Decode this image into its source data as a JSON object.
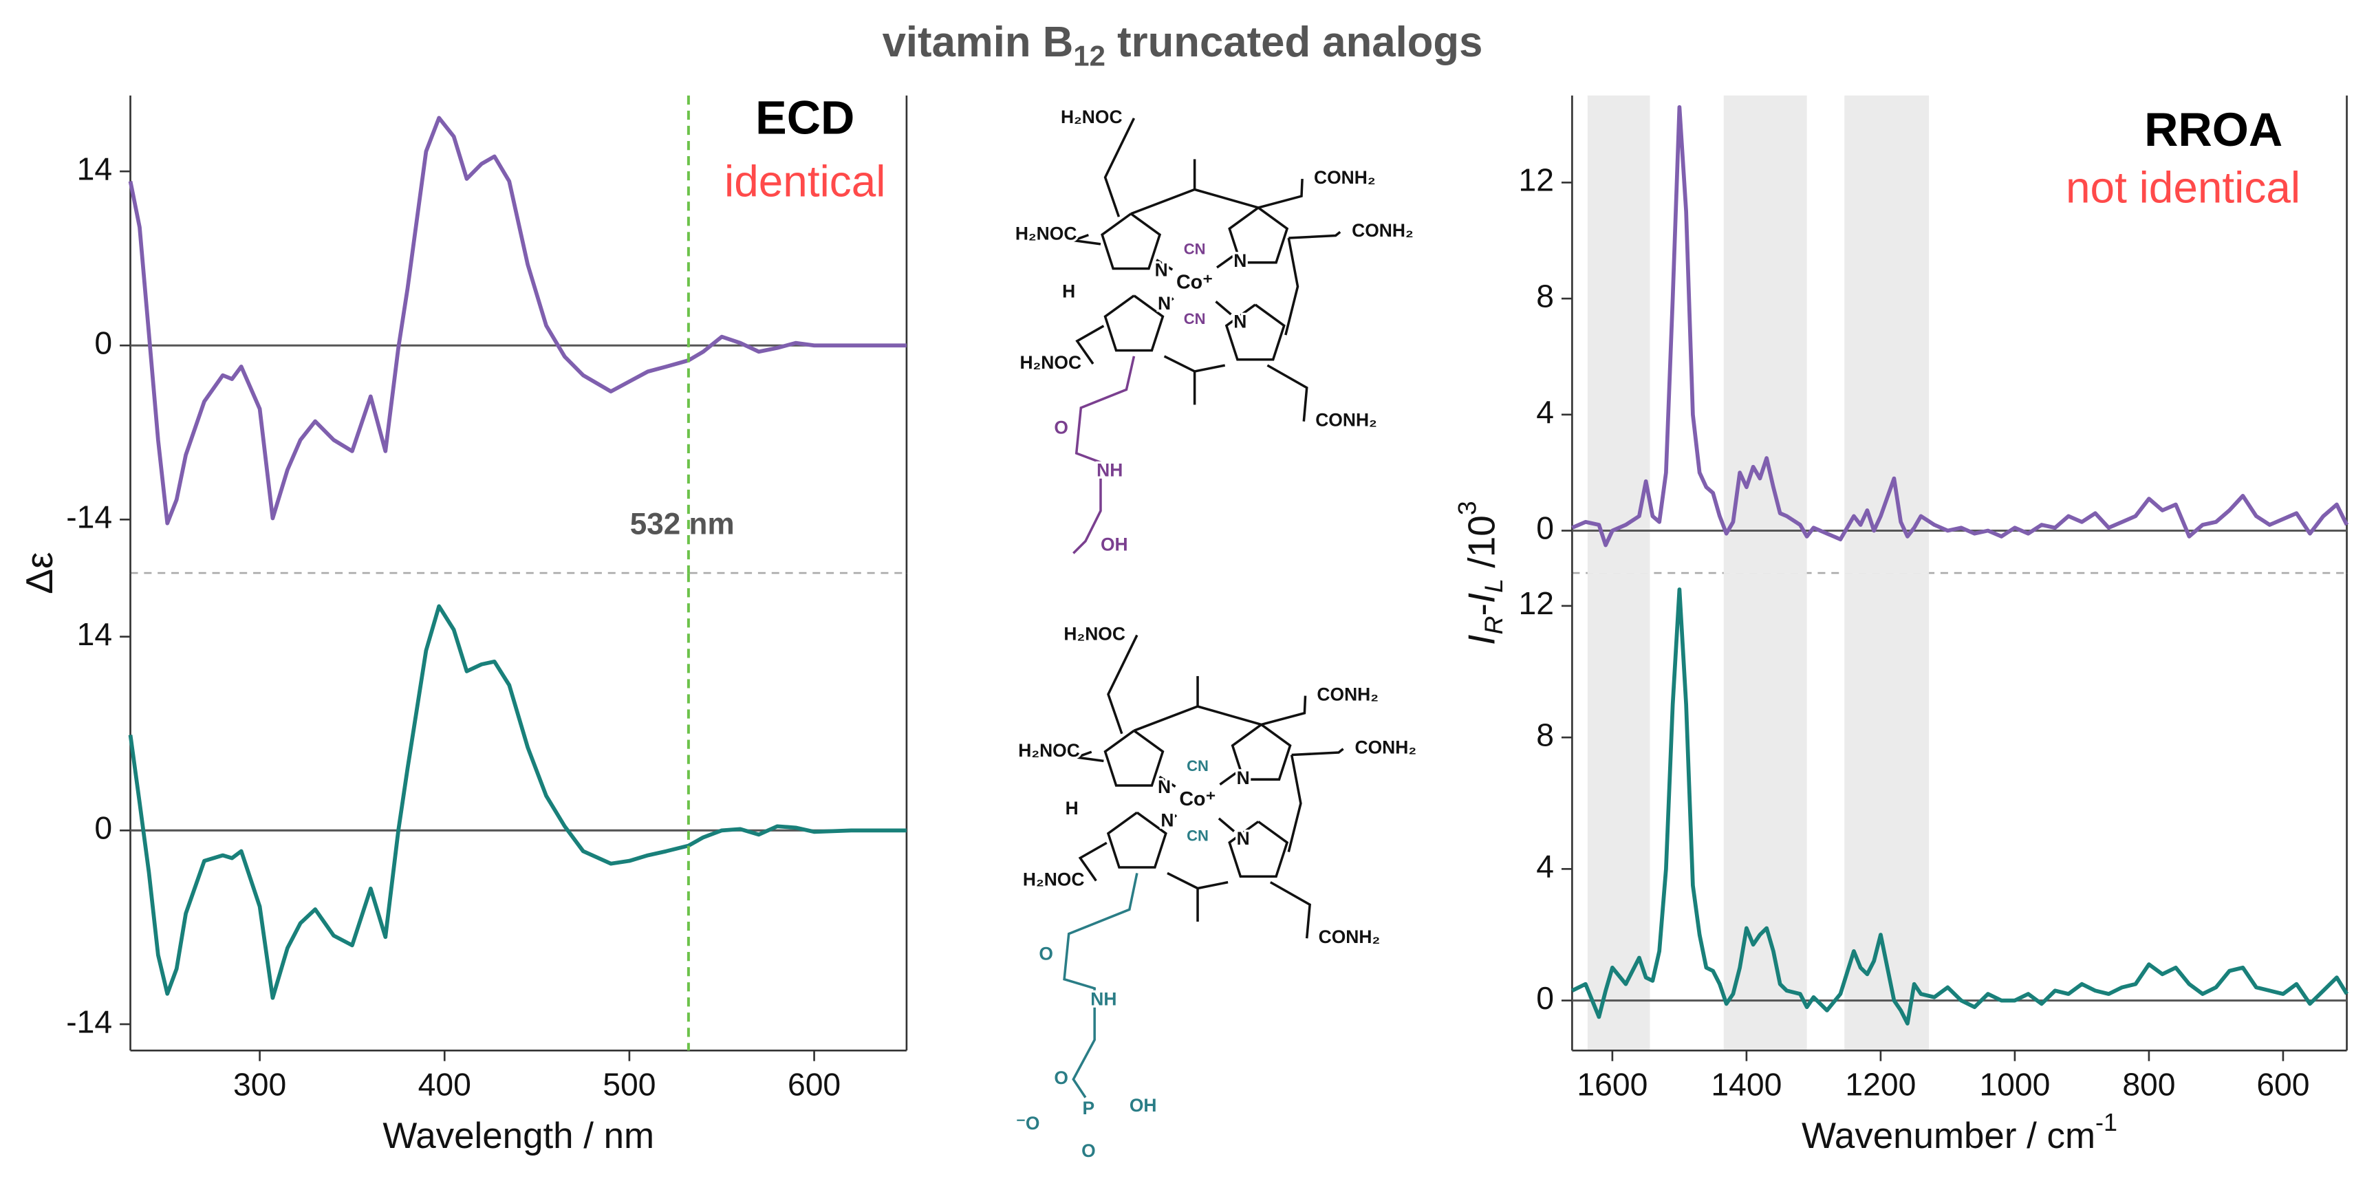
{
  "title": [
    {
      "text": "vitamin B"
    },
    {
      "text": "12",
      "style": "sub"
    },
    {
      "text": " truncated analogs"
    }
  ],
  "chart_data": [
    {
      "type": "line",
      "x": [
        230,
        235,
        240,
        245,
        250,
        255,
        260,
        270,
        280,
        285,
        290,
        300,
        307,
        315,
        322,
        330,
        340,
        350,
        360,
        368,
        375,
        380,
        390,
        397,
        405,
        412,
        420,
        427,
        435,
        445,
        455,
        465,
        475,
        490,
        500,
        510,
        520,
        532,
        540,
        550,
        560,
        570,
        580,
        590,
        600,
        620,
        650
      ],
      "series": [
        {
          "color": "#7f5fae",
          "values": [
            13.2,
            9.5,
            1,
            -7.6,
            -14.3,
            -12.4,
            -8.8,
            -4.5,
            -2.4,
            -2.7,
            -1.7,
            -5.1,
            -13.9,
            -10,
            -7.6,
            -6.1,
            -7.6,
            -8.5,
            -4.1,
            -8.5,
            -0.2,
            4.6,
            15.6,
            18.3,
            16.8,
            13.4,
            14.6,
            15.2,
            13.2,
            6.5,
            1.6,
            -0.9,
            -2.4,
            -3.7,
            -2.9,
            -2.1,
            -1.7,
            -1.2,
            -0.5,
            0.7,
            0.2,
            -0.5,
            -0.2,
            0.2,
            0,
            0,
            0
          ]
        }
      ],
      "xlim": [
        230,
        650
      ],
      "ylim": [
        -18.3,
        20.1
      ],
      "yticks": [
        -14,
        0,
        14
      ],
      "ylabel": "Δε",
      "vline": 532,
      "vline_color": "#6cc24a",
      "annotations": [
        {
          "text": "ECD",
          "color": "#000000"
        },
        {
          "text": "identical",
          "color": "#ff4a4a"
        },
        {
          "text": "532 nm",
          "color": "#555555"
        }
      ]
    },
    {
      "type": "line",
      "x": [
        230,
        235,
        240,
        245,
        250,
        255,
        260,
        270,
        280,
        285,
        290,
        300,
        307,
        315,
        322,
        330,
        340,
        350,
        360,
        368,
        375,
        380,
        390,
        397,
        405,
        412,
        420,
        427,
        435,
        445,
        455,
        465,
        475,
        490,
        500,
        510,
        520,
        532,
        540,
        550,
        560,
        570,
        580,
        590,
        600,
        620,
        650
      ],
      "series": [
        {
          "color": "#19807a",
          "values": [
            6.9,
            2,
            -3,
            -9,
            -11.8,
            -10,
            -6,
            -2.2,
            -1.8,
            -2,
            -1.5,
            -5.5,
            -12.1,
            -8.5,
            -6.7,
            -5.7,
            -7.6,
            -8.3,
            -4.2,
            -7.7,
            0,
            4.5,
            13,
            16.2,
            14.5,
            11.5,
            12,
            12.2,
            10.5,
            6,
            2.5,
            0.3,
            -1.5,
            -2.4,
            -2.2,
            -1.8,
            -1.5,
            -1.1,
            -0.5,
            0,
            0.1,
            -0.3,
            0.3,
            0.2,
            -0.1,
            0,
            0
          ]
        }
      ],
      "xlim": [
        230,
        650
      ],
      "ylim": [
        -15.9,
        18.6
      ],
      "yticks": [
        -14,
        0,
        14
      ],
      "xticks": [
        300,
        400,
        500,
        600
      ],
      "xlabel": [
        {
          "text": "Wavelength / nm"
        }
      ],
      "vline": 532,
      "vline_color": "#6cc24a"
    },
    {
      "type": "line",
      "x": [
        1660,
        1640,
        1620,
        1610,
        1600,
        1580,
        1560,
        1550,
        1540,
        1530,
        1520,
        1510,
        1500,
        1490,
        1480,
        1470,
        1460,
        1450,
        1440,
        1430,
        1420,
        1410,
        1400,
        1390,
        1380,
        1370,
        1360,
        1350,
        1340,
        1320,
        1310,
        1300,
        1280,
        1260,
        1240,
        1230,
        1220,
        1210,
        1200,
        1180,
        1170,
        1160,
        1150,
        1140,
        1120,
        1100,
        1080,
        1060,
        1040,
        1020,
        1000,
        980,
        960,
        940,
        920,
        900,
        880,
        860,
        840,
        820,
        800,
        780,
        760,
        740,
        720,
        700,
        680,
        660,
        640,
        620,
        600,
        580,
        560,
        540,
        520,
        505
      ],
      "series": [
        {
          "color": "#7f5fae",
          "values": [
            0.1,
            0.3,
            0.2,
            -0.5,
            0,
            0.2,
            0.5,
            1.7,
            0.5,
            0.3,
            2,
            8,
            14.6,
            11,
            4,
            2,
            1.5,
            1.3,
            0.5,
            -0.1,
            0.3,
            2,
            1.5,
            2.2,
            1.8,
            2.5,
            1.5,
            0.6,
            0.5,
            0.2,
            -0.2,
            0.1,
            -0.1,
            -0.3,
            0.5,
            0.2,
            0.7,
            0,
            0.5,
            1.8,
            0.3,
            -0.2,
            0.1,
            0.5,
            0.2,
            0,
            0.1,
            -0.1,
            0,
            -0.2,
            0.1,
            -0.1,
            0.2,
            0.1,
            0.5,
            0.3,
            0.6,
            0.1,
            0.3,
            0.5,
            1.1,
            0.7,
            0.9,
            -0.2,
            0.2,
            0.3,
            0.7,
            1.2,
            0.5,
            0.2,
            0.4,
            0.6,
            -0.1,
            0.5,
            0.9,
            0.2
          ]
        }
      ],
      "xlim": [
        1660,
        505
      ],
      "ylim": [
        -1.46,
        15
      ],
      "yticks": [
        0,
        4,
        8,
        12
      ],
      "ylabel": [
        {
          "text": "I",
          "style": "italic"
        },
        {
          "text": "R",
          "style": "sub-italic"
        },
        {
          "text": "-"
        },
        {
          "text": "I",
          "style": "italic"
        },
        {
          "text": "L",
          "style": "sub-italic"
        },
        {
          "text": " /10"
        },
        {
          "text": "3",
          "style": "sup"
        }
      ],
      "shaded_regions": [
        [
          1637,
          1544
        ],
        [
          1434,
          1310
        ],
        [
          1254,
          1128
        ]
      ],
      "shade_color": "#ebebeb",
      "annotations": [
        {
          "text": "RROA",
          "color": "#000000"
        },
        {
          "text": "not identical",
          "color": "#ff4a4a"
        }
      ]
    },
    {
      "type": "line",
      "x": [
        1660,
        1640,
        1620,
        1610,
        1600,
        1580,
        1560,
        1550,
        1540,
        1530,
        1520,
        1510,
        1500,
        1490,
        1480,
        1470,
        1460,
        1450,
        1440,
        1430,
        1420,
        1410,
        1400,
        1390,
        1380,
        1370,
        1360,
        1350,
        1340,
        1320,
        1310,
        1300,
        1280,
        1260,
        1240,
        1230,
        1220,
        1210,
        1200,
        1180,
        1170,
        1160,
        1150,
        1140,
        1120,
        1100,
        1080,
        1060,
        1040,
        1020,
        1000,
        980,
        960,
        940,
        920,
        900,
        880,
        860,
        840,
        820,
        800,
        780,
        760,
        740,
        720,
        700,
        680,
        660,
        640,
        620,
        600,
        580,
        560,
        540,
        520,
        505
      ],
      "series": [
        {
          "color": "#19807a",
          "values": [
            0.3,
            0.5,
            -0.5,
            0.3,
            1,
            0.5,
            1.3,
            0.7,
            0.6,
            1.5,
            4,
            9,
            12.5,
            9,
            3.5,
            2,
            1,
            0.9,
            0.5,
            -0.1,
            0.2,
            1,
            2.2,
            1.7,
            2,
            2.2,
            1.5,
            0.5,
            0.3,
            0.2,
            -0.2,
            0.1,
            -0.3,
            0.2,
            1.5,
            1,
            0.8,
            1.2,
            2,
            0,
            -0.3,
            -0.7,
            0.5,
            0.2,
            0.1,
            0.4,
            0,
            -0.2,
            0.2,
            0,
            0,
            0.2,
            -0.1,
            0.3,
            0.2,
            0.5,
            0.3,
            0.2,
            0.4,
            0.5,
            1.1,
            0.8,
            1,
            0.5,
            0.2,
            0.4,
            0.9,
            1,
            0.4,
            0.3,
            0.2,
            0.5,
            -0.1,
            0.3,
            0.7,
            0.2
          ]
        }
      ],
      "xlim": [
        1660,
        505
      ],
      "ylim": [
        -1.52,
        13
      ],
      "yticks": [
        0,
        4,
        8,
        12
      ],
      "xticks": [
        1600,
        1400,
        1200,
        1000,
        800,
        600
      ],
      "xlabel": [
        {
          "text": "Wavenumber / cm"
        },
        {
          "text": "-1",
          "style": "sup"
        }
      ],
      "shaded_regions": [
        [
          1637,
          1544
        ],
        [
          1434,
          1310
        ],
        [
          1254,
          1128
        ]
      ],
      "shade_color": "#ebebeb"
    }
  ],
  "molecules": [
    {
      "color": "#7a3f8f",
      "labels": [
        "H₂NOC",
        "CONH₂",
        "H₂NOC",
        "CONH₂",
        "CN",
        "Co⁺",
        "CN",
        "N",
        "N",
        "N",
        "N",
        "H",
        "H₂NOC",
        "CONH₂",
        "O",
        "NH",
        "OH"
      ]
    },
    {
      "color": "#2a7d86",
      "labels": [
        "H₂NOC",
        "CONH₂",
        "H₂NOC",
        "CONH₂",
        "CN",
        "Co⁺",
        "CN",
        "N",
        "N",
        "N",
        "N",
        "H",
        "H₂NOC",
        "CONH₂",
        "O",
        "NH",
        "⁻O",
        "P",
        "OH",
        "O",
        "O"
      ]
    }
  ]
}
